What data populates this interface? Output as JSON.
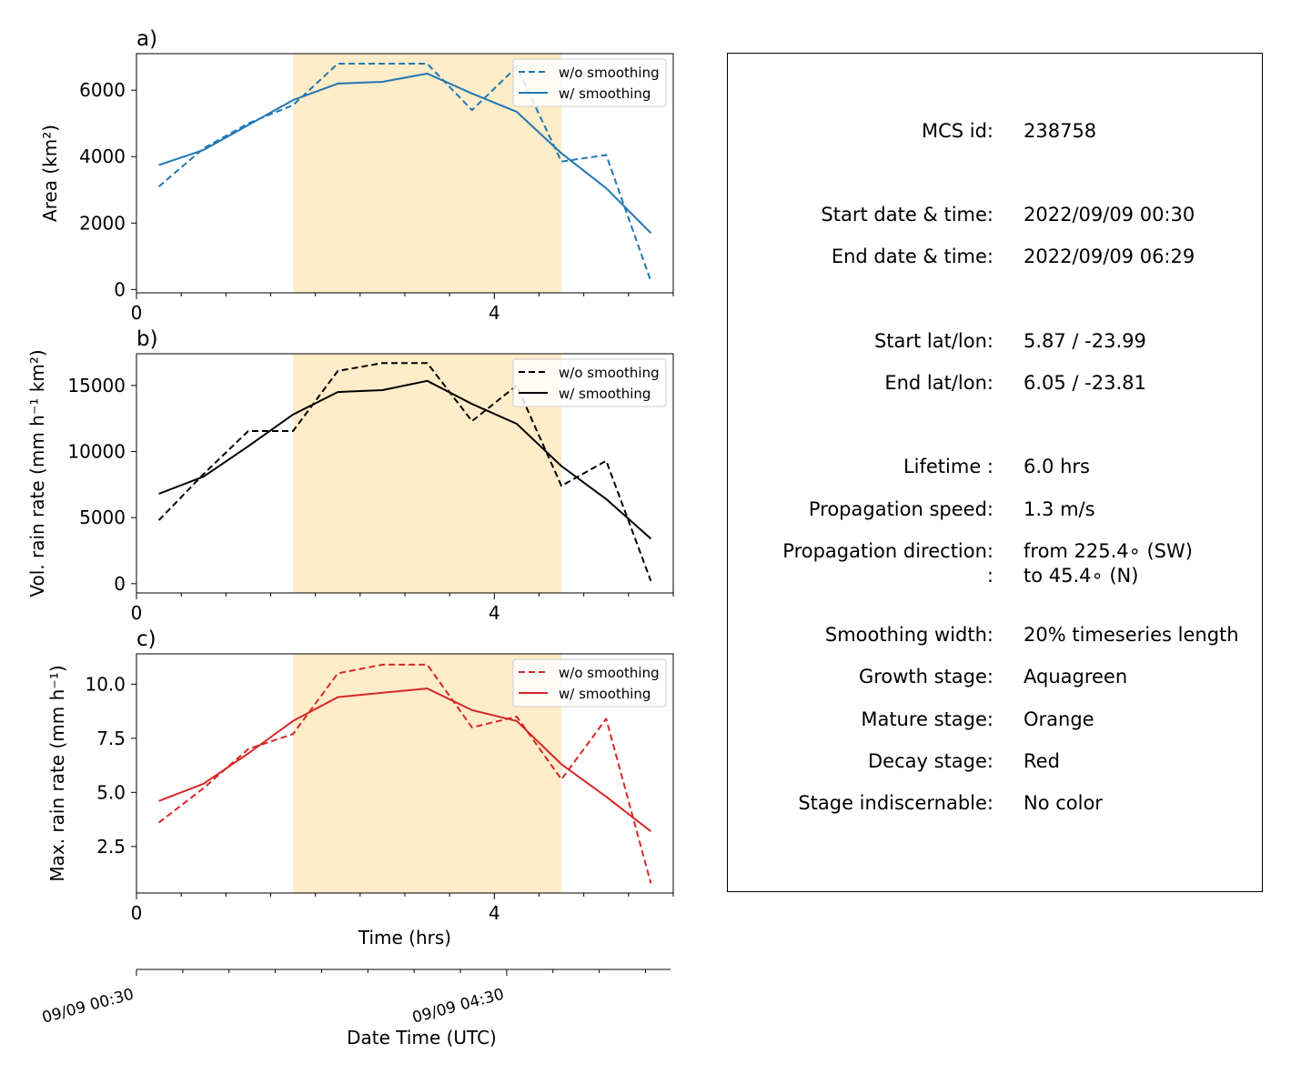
{
  "chart_data": [
    {
      "type": "line",
      "panel_label": "a)",
      "ylabel": "Area  (km²)",
      "ylim": [
        -100,
        7100
      ],
      "yticks": [
        "0",
        "2000",
        "4000",
        "6000"
      ],
      "yticks_values": [
        0,
        2000,
        4000,
        6000
      ],
      "xlim": [
        0,
        6
      ],
      "xticks": [
        "0",
        "4"
      ],
      "xticks_values": [
        0,
        4
      ],
      "shaded_span": {
        "start": 1.75,
        "end": 4.75,
        "color": "#ffecc8"
      },
      "legend_position": "upper right",
      "color": "#1f77b4",
      "series": [
        {
          "name": "w/o smoothing",
          "style": "dashed",
          "x": [
            0.25,
            0.75,
            1.25,
            1.75,
            2.25,
            2.75,
            3.25,
            3.75,
            4.25,
            4.75,
            5.25,
            5.75
          ],
          "values": [
            3100,
            4250,
            5000,
            5550,
            6800,
            6800,
            6800,
            5400,
            6700,
            3850,
            4050,
            250
          ]
        },
        {
          "name": "w/ smoothing",
          "style": "solid",
          "x": [
            0.25,
            0.75,
            1.25,
            1.75,
            2.25,
            2.75,
            3.25,
            3.75,
            4.25,
            4.75,
            5.25,
            5.75
          ],
          "values": [
            3750,
            4200,
            4950,
            5700,
            6200,
            6250,
            6500,
            5900,
            5350,
            4100,
            3050,
            1700
          ]
        }
      ]
    },
    {
      "type": "line",
      "panel_label": "b)",
      "ylabel": "Vol. rain rate (mm h⁻¹ km²)",
      "ylim": [
        -700,
        17400
      ],
      "yticks": [
        "0",
        "5000",
        "10000",
        "15000"
      ],
      "yticks_values": [
        0,
        5000,
        10000,
        15000
      ],
      "xlim": [
        0,
        6
      ],
      "xticks": [
        "0",
        "4"
      ],
      "xticks_values": [
        0,
        4
      ],
      "shaded_span": {
        "start": 1.75,
        "end": 4.75,
        "color": "#ffecc8"
      },
      "legend_position": "upper right",
      "color": "#000000",
      "series": [
        {
          "name": "w/o smoothing",
          "style": "dashed",
          "x": [
            0.25,
            0.75,
            1.25,
            1.75,
            2.25,
            2.75,
            3.25,
            3.75,
            4.25,
            4.75,
            5.25,
            5.75
          ],
          "values": [
            4800,
            8300,
            11550,
            11550,
            16100,
            16700,
            16700,
            12300,
            15000,
            7400,
            9300,
            200
          ]
        },
        {
          "name": "w/ smoothing",
          "style": "solid",
          "x": [
            0.25,
            0.75,
            1.25,
            1.75,
            2.25,
            2.75,
            3.25,
            3.75,
            4.25,
            4.75,
            5.25,
            5.75
          ],
          "values": [
            6800,
            8100,
            10400,
            12800,
            14500,
            14650,
            15350,
            13600,
            12100,
            8900,
            6400,
            3400
          ]
        }
      ]
    },
    {
      "type": "line",
      "panel_label": "c)",
      "ylabel": "Max. rain rate  (mm h⁻¹)",
      "ylim": [
        0.35,
        11.4
      ],
      "yticks": [
        "2.5",
        "5.0",
        "7.5",
        "10.0"
      ],
      "yticks_values": [
        2.5,
        5.0,
        7.5,
        10.0
      ],
      "xlim": [
        0,
        6
      ],
      "xticks": [
        "0",
        "4"
      ],
      "xticks_values": [
        0,
        4
      ],
      "xlabel": "Time (hrs)",
      "shaded_span": {
        "start": 1.75,
        "end": 4.75,
        "color": "#ffecc8"
      },
      "legend_position": "upper right",
      "color": "#d62728",
      "series": [
        {
          "name": "w/o smoothing",
          "style": "dashed",
          "x": [
            0.25,
            0.75,
            1.25,
            1.75,
            2.25,
            2.75,
            3.25,
            3.75,
            4.25,
            4.75,
            5.25,
            5.75
          ],
          "values": [
            3.6,
            5.2,
            7.0,
            7.7,
            10.5,
            10.9,
            10.9,
            8.0,
            8.5,
            5.6,
            8.4,
            0.8
          ]
        },
        {
          "name": "w/ smoothing",
          "style": "solid",
          "x": [
            0.25,
            0.75,
            1.25,
            1.75,
            2.25,
            2.75,
            3.25,
            3.75,
            4.25,
            4.75,
            5.25,
            5.75
          ],
          "values": [
            4.6,
            5.4,
            6.8,
            8.3,
            9.4,
            9.6,
            9.8,
            8.8,
            8.3,
            6.3,
            4.8,
            3.2
          ]
        }
      ]
    }
  ],
  "date_axis": {
    "xlabel": "Date Time (UTC)",
    "tick_labels": [
      "09/09 00:30",
      "09/09 04:30"
    ],
    "tick_values": [
      "2022-09-09T00:30",
      "2022-09-09T04:30"
    ]
  },
  "info": {
    "rows": [
      {
        "label": "MCS id:",
        "value": "238758"
      },
      {
        "label": "Start date & time:",
        "value": "2022/09/09 00:30"
      },
      {
        "label": "End date & time:",
        "value": "2022/09/09 06:29"
      },
      {
        "label": "Start lat/lon:",
        "value": "5.87 / -23.99"
      },
      {
        "label": "End lat/lon:",
        "value": "6.05 / -23.81"
      },
      {
        "label": "Lifetime :",
        "value": "6.0 hrs"
      },
      {
        "label": "Propagation speed:",
        "value": "1.3 m/s"
      },
      {
        "label": "Propagation direction:",
        "value": "from 225.4∘ (SW)"
      },
      {
        "label": ":",
        "value": "to    45.4∘ (N)"
      },
      {
        "label": "Smoothing width:",
        "value": "20% timeseries length"
      },
      {
        "label": "Growth stage:",
        "value": "Aquagreen"
      },
      {
        "label": "Mature stage:",
        "value": "Orange"
      },
      {
        "label": "Decay stage:",
        "value": "Red"
      },
      {
        "label": "Stage indiscernable:",
        "value": "No color"
      }
    ]
  }
}
